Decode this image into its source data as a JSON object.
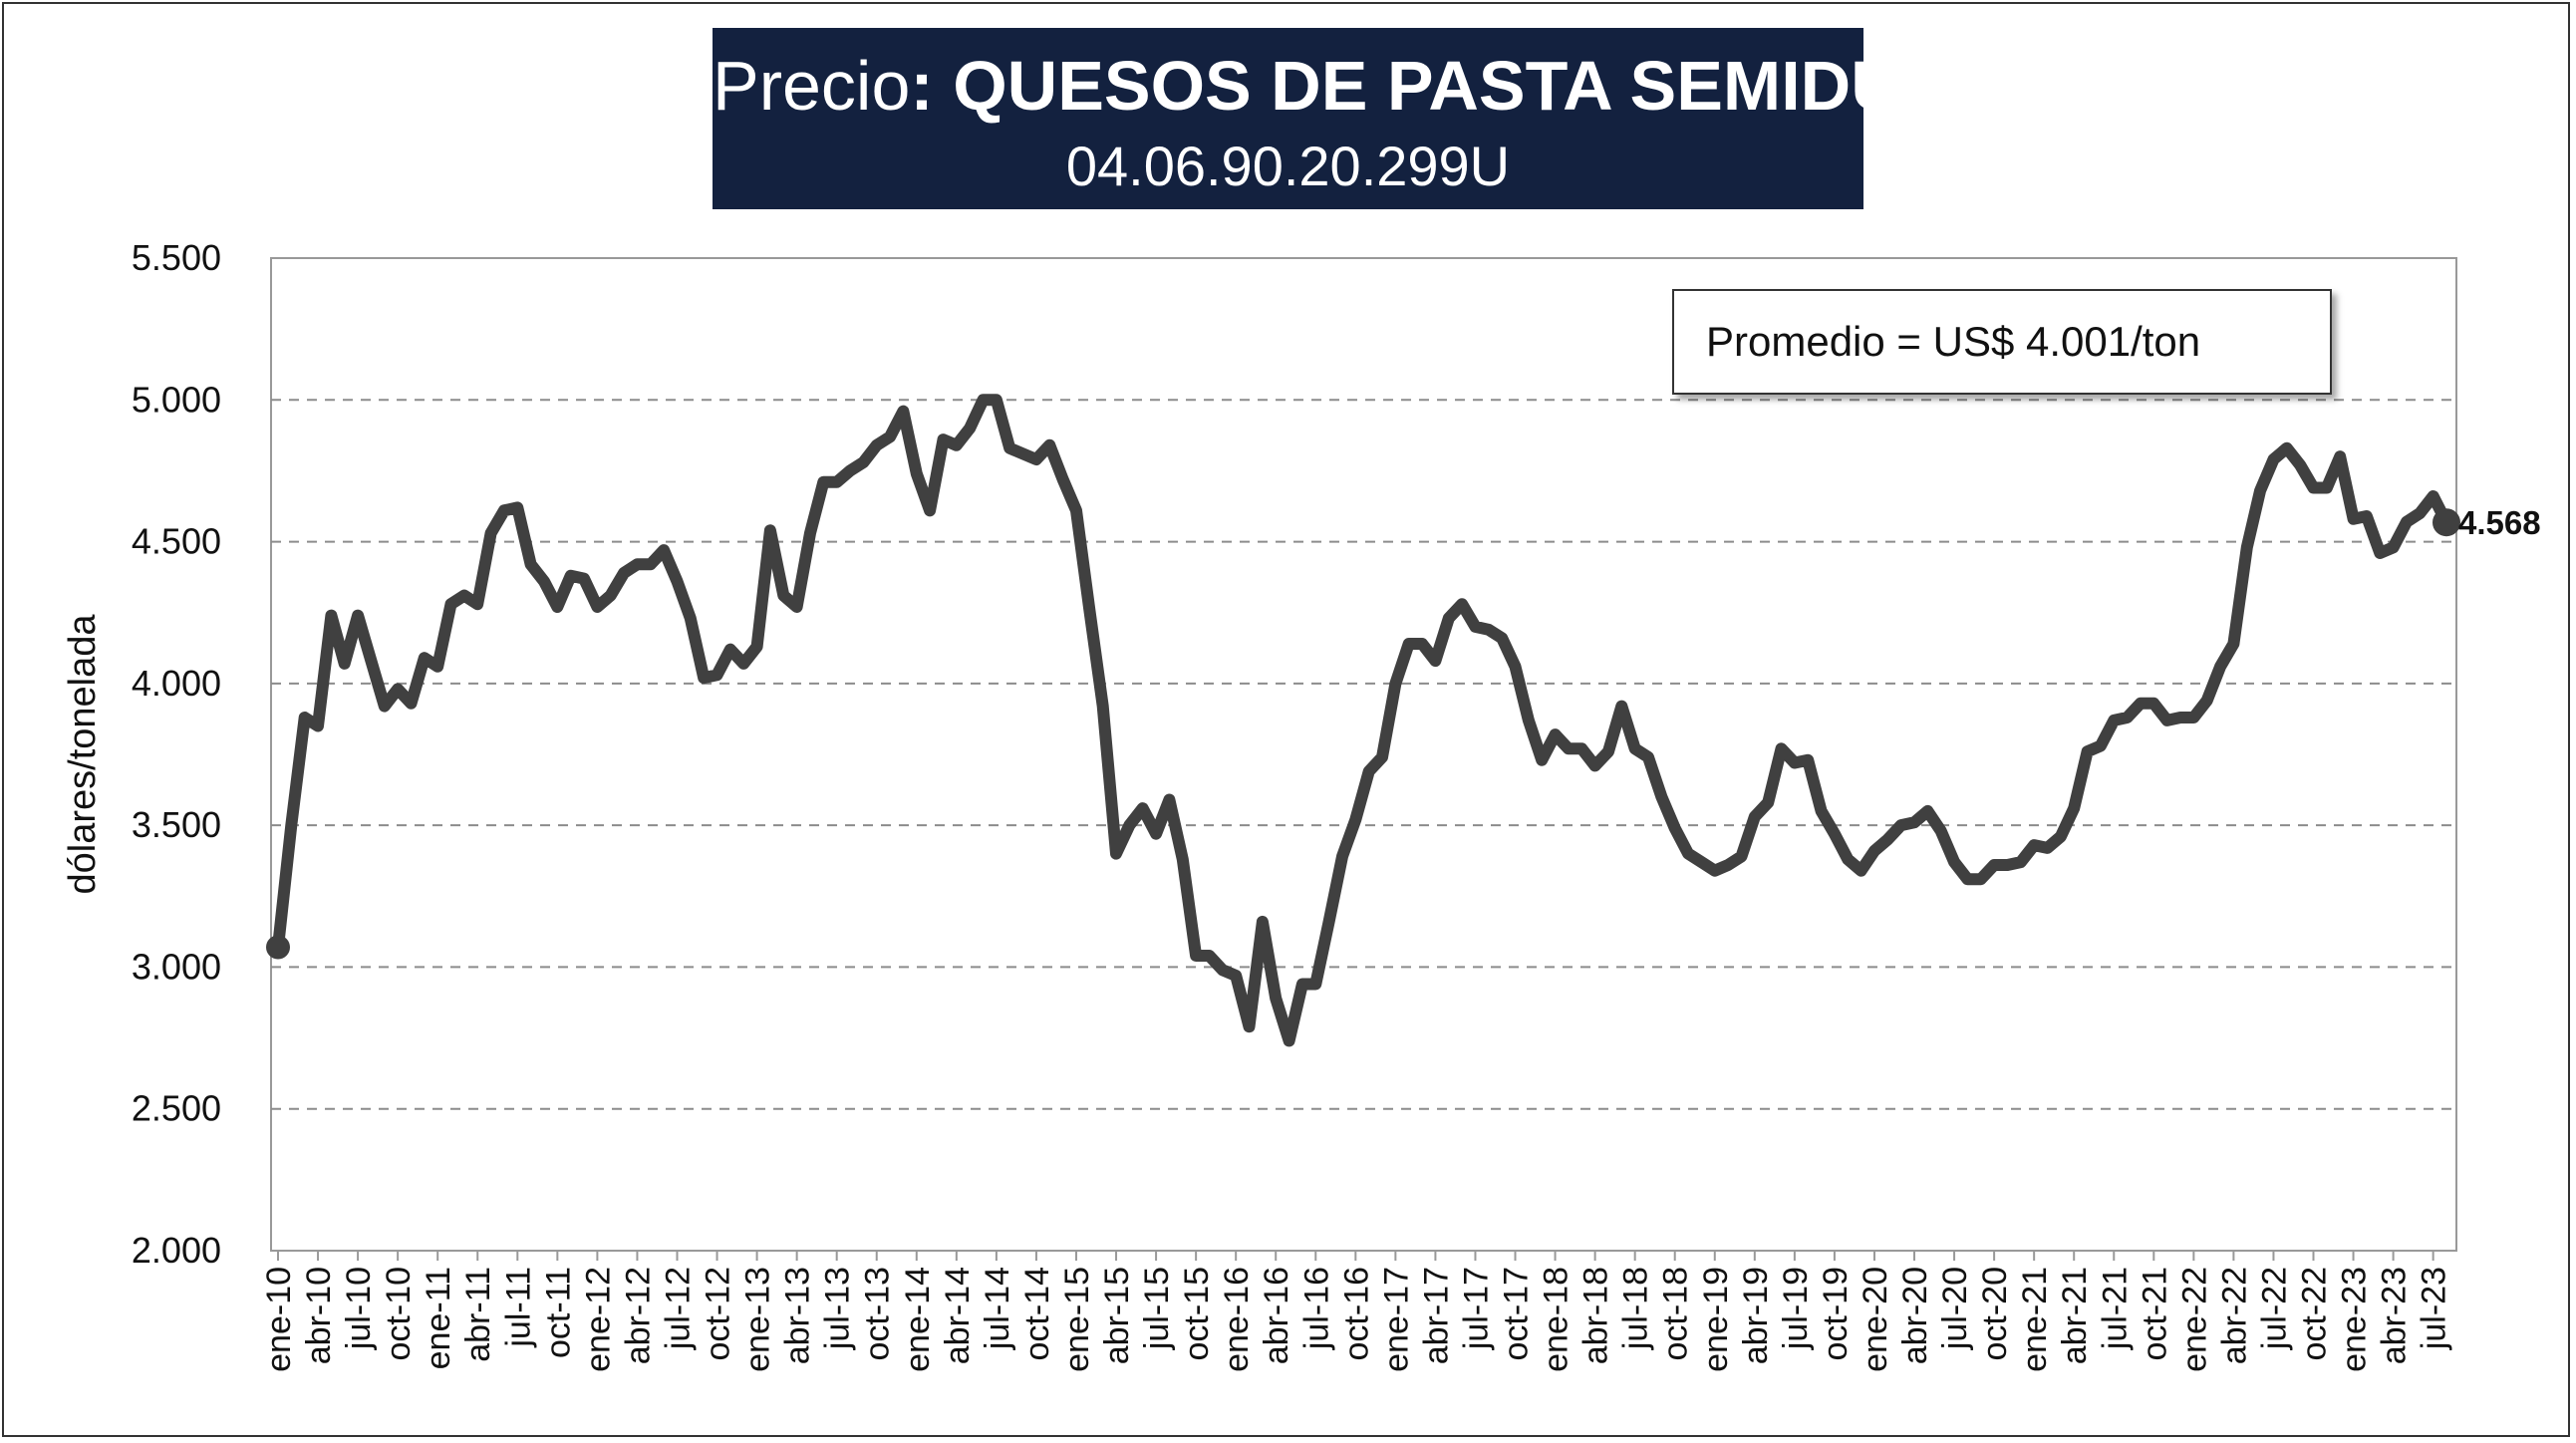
{
  "header": {
    "title_prefix": "Precio",
    "title_colon": ": ",
    "title_bold": "QUESOS DE PASTA SEMIDURA",
    "subtitle": "04.06.90.20.299U"
  },
  "annotation": {
    "average_text": "Promedio = US$ 4.001/ton"
  },
  "colors": {
    "title_bg": "#13213f",
    "line": "#404040",
    "grid": "#8c8c8c"
  },
  "chart_data": {
    "type": "line",
    "title": "Precio: QUESOS DE PASTA SEMIDURA",
    "subtitle": "04.06.90.20.299U",
    "xlabel": "",
    "ylabel": "dólares/tonelada",
    "ylim": [
      2000,
      5500
    ],
    "y_ticks": [
      2000,
      2500,
      3000,
      3500,
      4000,
      4500,
      5000,
      5500
    ],
    "y_tick_labels": [
      "2.000",
      "2.500",
      "3.000",
      "3.500",
      "4.000",
      "4.500",
      "5.000",
      "5.500"
    ],
    "grid": "horizontal dashed",
    "x_tick_labels": [
      "ene-10",
      "abr-10",
      "jul-10",
      "oct-10",
      "ene-11",
      "abr-11",
      "jul-11",
      "oct-11",
      "ene-12",
      "abr-12",
      "jul-12",
      "oct-12",
      "ene-13",
      "abr-13",
      "jul-13",
      "oct-13",
      "ene-14",
      "abr-14",
      "jul-14",
      "oct-14",
      "ene-15",
      "abr-15",
      "jul-15",
      "oct-15",
      "ene-16",
      "abr-16",
      "jul-16",
      "oct-16",
      "ene-17",
      "abr-17",
      "jul-17",
      "oct-17",
      "ene-18",
      "abr-18",
      "jul-18",
      "oct-18",
      "ene-19",
      "abr-19",
      "jul-19",
      "oct-19",
      "ene-20",
      "abr-20",
      "jul-20",
      "oct-20",
      "ene-21",
      "abr-21",
      "jul-21",
      "oct-21",
      "ene-22",
      "abr-22",
      "jul-22",
      "oct-22",
      "ene-23",
      "abr-23",
      "jul-23"
    ],
    "x_start": "ene-10",
    "x_frequency": "monthly",
    "series": [
      {
        "values": [
          3070,
          3500,
          3880,
          3850,
          4240,
          4070,
          4240,
          4080,
          3920,
          3980,
          3930,
          4090,
          4060,
          4280,
          4310,
          4280,
          4530,
          4610,
          4620,
          4420,
          4360,
          4270,
          4380,
          4370,
          4270,
          4310,
          4390,
          4420,
          4420,
          4470,
          4360,
          4230,
          4020,
          4030,
          4120,
          4070,
          4130,
          4540,
          4310,
          4270,
          4530,
          4710,
          4710,
          4750,
          4780,
          4840,
          4870,
          4960,
          4740,
          4610,
          4860,
          4840,
          4900,
          5000,
          5000,
          4830,
          4810,
          4790,
          4840,
          4720,
          4610,
          4260,
          3920,
          3400,
          3500,
          3560,
          3470,
          3590,
          3380,
          3040,
          3040,
          2990,
          2970,
          2790,
          3160,
          2890,
          2740,
          2940,
          2940,
          3160,
          3390,
          3520,
          3690,
          3740,
          4000,
          4140,
          4140,
          4080,
          4230,
          4280,
          4200,
          4190,
          4160,
          4060,
          3870,
          3730,
          3820,
          3770,
          3770,
          3710,
          3760,
          3920,
          3770,
          3740,
          3600,
          3490,
          3400,
          3370,
          3340,
          3360,
          3390,
          3530,
          3580,
          3770,
          3720,
          3730,
          3550,
          3470,
          3380,
          3340,
          3410,
          3450,
          3500,
          3510,
          3550,
          3480,
          3370,
          3310,
          3310,
          3360,
          3360,
          3370,
          3430,
          3420,
          3460,
          3560,
          3760,
          3780,
          3870,
          3880,
          3930,
          3930,
          3870,
          3880,
          3880,
          3940,
          4060,
          4140,
          4480,
          4680,
          4790,
          4830,
          4770,
          4690,
          4690,
          4800,
          4580,
          4590,
          4460,
          4480,
          4570,
          4600,
          4660,
          4568
        ]
      }
    ],
    "end_point": {
      "x": "ago-23",
      "y": 4568,
      "label": "4.568"
    },
    "annotations": [
      "Promedio = US$ 4.001/ton"
    ]
  }
}
